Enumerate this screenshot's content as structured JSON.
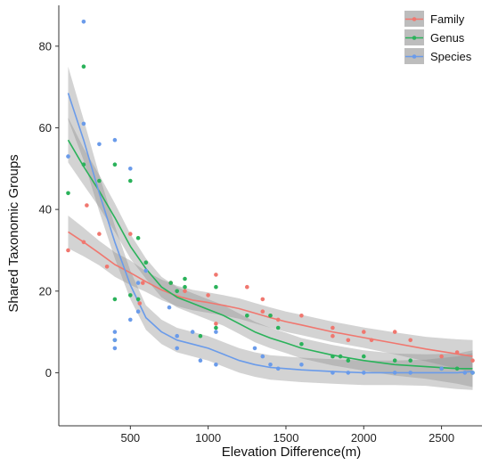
{
  "chart_data": {
    "type": "scatter",
    "xlabel": "Elevation Difference(m)",
    "ylabel": "Shared Taxonomic Groups",
    "xlim": [
      40,
      2760
    ],
    "ylim": [
      -13,
      90
    ],
    "xticks": [
      500,
      1000,
      1500,
      2000,
      2500
    ],
    "yticks": [
      0,
      20,
      40,
      60,
      80
    ],
    "grid": false,
    "legend_position": "top-right",
    "series": [
      {
        "name": "Family",
        "color": "#f0776f",
        "points": [
          [
            100,
            30
          ],
          [
            200,
            32
          ],
          [
            220,
            41
          ],
          [
            300,
            34
          ],
          [
            350,
            26
          ],
          [
            500,
            34
          ],
          [
            560,
            17
          ],
          [
            580,
            22
          ],
          [
            760,
            22
          ],
          [
            850,
            20
          ],
          [
            1000,
            19
          ],
          [
            1050,
            24
          ],
          [
            1050,
            12
          ],
          [
            1250,
            21
          ],
          [
            1350,
            18
          ],
          [
            1350,
            15
          ],
          [
            1400,
            14
          ],
          [
            1450,
            13
          ],
          [
            1600,
            14
          ],
          [
            1800,
            11
          ],
          [
            1800,
            9
          ],
          [
            1900,
            8
          ],
          [
            2000,
            10
          ],
          [
            2050,
            8
          ],
          [
            2200,
            10
          ],
          [
            2300,
            8
          ],
          [
            2500,
            4
          ],
          [
            2600,
            5
          ],
          [
            2700,
            3
          ]
        ],
        "fit": [
          [
            100,
            34.5
          ],
          [
            200,
            32
          ],
          [
            300,
            29.3
          ],
          [
            400,
            26.5
          ],
          [
            500,
            24.5
          ],
          [
            600,
            22.3
          ],
          [
            700,
            20.3
          ],
          [
            800,
            18.8
          ],
          [
            900,
            17.8
          ],
          [
            1000,
            17.2
          ],
          [
            1100,
            16.5
          ],
          [
            1200,
            15.7
          ],
          [
            1300,
            14.6
          ],
          [
            1400,
            13.5
          ],
          [
            1500,
            12.5
          ],
          [
            1600,
            11.7
          ],
          [
            1800,
            10
          ],
          [
            2000,
            8.6
          ],
          [
            2200,
            7.2
          ],
          [
            2400,
            5.8
          ],
          [
            2600,
            4.6
          ],
          [
            2700,
            4
          ]
        ],
        "band_halfwidth": [
          4,
          3.5,
          3,
          3,
          3,
          2.5,
          2.5,
          2.5,
          2.5,
          2.5,
          2.5,
          2.5,
          2.5,
          2.5,
          2.5,
          2.5,
          2.5,
          2.5,
          2.7,
          3,
          3.6,
          4
        ]
      },
      {
        "name": "Genus",
        "color": "#2ab25a",
        "points": [
          [
            100,
            44
          ],
          [
            200,
            51
          ],
          [
            200,
            75
          ],
          [
            300,
            47
          ],
          [
            400,
            51
          ],
          [
            400,
            18
          ],
          [
            400,
            8
          ],
          [
            500,
            47
          ],
          [
            500,
            19
          ],
          [
            550,
            33
          ],
          [
            550,
            18
          ],
          [
            600,
            27
          ],
          [
            760,
            22
          ],
          [
            800,
            20
          ],
          [
            850,
            23
          ],
          [
            850,
            21
          ],
          [
            950,
            9
          ],
          [
            1050,
            21
          ],
          [
            1050,
            11
          ],
          [
            1250,
            14
          ],
          [
            1400,
            14
          ],
          [
            1450,
            11
          ],
          [
            1600,
            7
          ],
          [
            1800,
            4
          ],
          [
            1850,
            4
          ],
          [
            1900,
            3
          ],
          [
            2000,
            4
          ],
          [
            2200,
            3
          ],
          [
            2300,
            3
          ],
          [
            2500,
            1
          ],
          [
            2600,
            1
          ],
          [
            2700,
            0
          ]
        ],
        "fit": [
          [
            100,
            57
          ],
          [
            200,
            50.5
          ],
          [
            300,
            44.5
          ],
          [
            400,
            38
          ],
          [
            500,
            31
          ],
          [
            600,
            25.5
          ],
          [
            700,
            21
          ],
          [
            800,
            18.5
          ],
          [
            900,
            17
          ],
          [
            1000,
            15.5
          ],
          [
            1100,
            14
          ],
          [
            1200,
            12
          ],
          [
            1300,
            10
          ],
          [
            1400,
            8.5
          ],
          [
            1500,
            7.3
          ],
          [
            1600,
            6
          ],
          [
            1800,
            4.3
          ],
          [
            2000,
            3
          ],
          [
            2200,
            2
          ],
          [
            2400,
            1.5
          ],
          [
            2600,
            1
          ],
          [
            2700,
            1
          ]
        ],
        "band_halfwidth": [
          5.5,
          4.5,
          4,
          3.5,
          3,
          2.5,
          2.5,
          2.5,
          2.5,
          2.5,
          2.5,
          2.5,
          2.5,
          2.5,
          2.5,
          2.5,
          2.5,
          2.5,
          2.7,
          3,
          3.7,
          4.5
        ]
      },
      {
        "name": "Species",
        "color": "#6a9bea",
        "points": [
          [
            100,
            53
          ],
          [
            200,
            61
          ],
          [
            200,
            86
          ],
          [
            300,
            56
          ],
          [
            400,
            57
          ],
          [
            400,
            10
          ],
          [
            400,
            8
          ],
          [
            400,
            6
          ],
          [
            500,
            50
          ],
          [
            500,
            13
          ],
          [
            550,
            22
          ],
          [
            550,
            15
          ],
          [
            600,
            25
          ],
          [
            750,
            16
          ],
          [
            800,
            9
          ],
          [
            800,
            6
          ],
          [
            900,
            10
          ],
          [
            950,
            3
          ],
          [
            1050,
            2
          ],
          [
            1050,
            10
          ],
          [
            1300,
            6
          ],
          [
            1350,
            4
          ],
          [
            1400,
            2
          ],
          [
            1450,
            1
          ],
          [
            1600,
            2
          ],
          [
            1800,
            0
          ],
          [
            1900,
            0
          ],
          [
            2000,
            0
          ],
          [
            2200,
            0
          ],
          [
            2300,
            0
          ],
          [
            2500,
            1
          ],
          [
            2650,
            0
          ],
          [
            2700,
            0
          ]
        ],
        "fit": [
          [
            100,
            68.5
          ],
          [
            200,
            57
          ],
          [
            300,
            44
          ],
          [
            400,
            32
          ],
          [
            500,
            21.5
          ],
          [
            600,
            13.5
          ],
          [
            700,
            10
          ],
          [
            800,
            8
          ],
          [
            900,
            7
          ],
          [
            1000,
            6
          ],
          [
            1100,
            4.5
          ],
          [
            1200,
            3
          ],
          [
            1300,
            2
          ],
          [
            1400,
            1.3
          ],
          [
            1500,
            1
          ],
          [
            1600,
            0.7
          ],
          [
            1800,
            0.3
          ],
          [
            2000,
            0
          ],
          [
            2200,
            0
          ],
          [
            2400,
            0
          ],
          [
            2600,
            0
          ],
          [
            2700,
            0.3
          ]
        ],
        "band_halfwidth": [
          6.5,
          5,
          4.5,
          4,
          3.5,
          3,
          3,
          3,
          3,
          3,
          3,
          3,
          3,
          3,
          3,
          3,
          3,
          3,
          3,
          3.2,
          4,
          4.5
        ]
      }
    ]
  }
}
